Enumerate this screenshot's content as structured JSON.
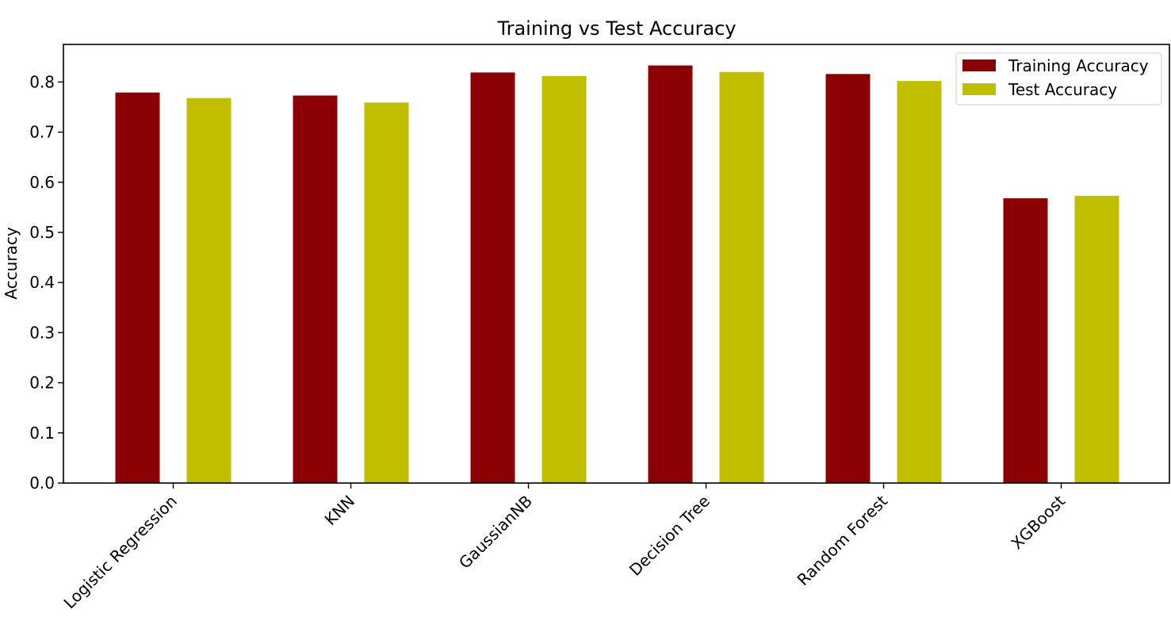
{
  "chart_data": {
    "type": "bar",
    "title": "Training vs Test Accuracy",
    "xlabel": "",
    "ylabel": "Accuracy",
    "categories": [
      "Logistic Regression",
      "KNN",
      "GaussianNB",
      "Decision Tree",
      "Random Forest",
      "XGBoost"
    ],
    "series": [
      {
        "name": "Training Accuracy",
        "color": "#8b0000",
        "values": [
          0.779,
          0.773,
          0.819,
          0.833,
          0.816,
          0.568
        ]
      },
      {
        "name": "Test Accuracy",
        "color": "#bfbf00",
        "values": [
          0.768,
          0.759,
          0.812,
          0.82,
          0.802,
          0.573
        ]
      }
    ],
    "ylim": [
      0,
      0.875
    ],
    "yticks": [
      0.0,
      0.1,
      0.2,
      0.3,
      0.4,
      0.5,
      0.6,
      0.7,
      0.8
    ],
    "ytick_labels": [
      "0.0",
      "0.1",
      "0.2",
      "0.3",
      "0.4",
      "0.5",
      "0.6",
      "0.7",
      "0.8"
    ],
    "grid": false,
    "legend_position": "top-right",
    "xtick_rotation": "45"
  }
}
